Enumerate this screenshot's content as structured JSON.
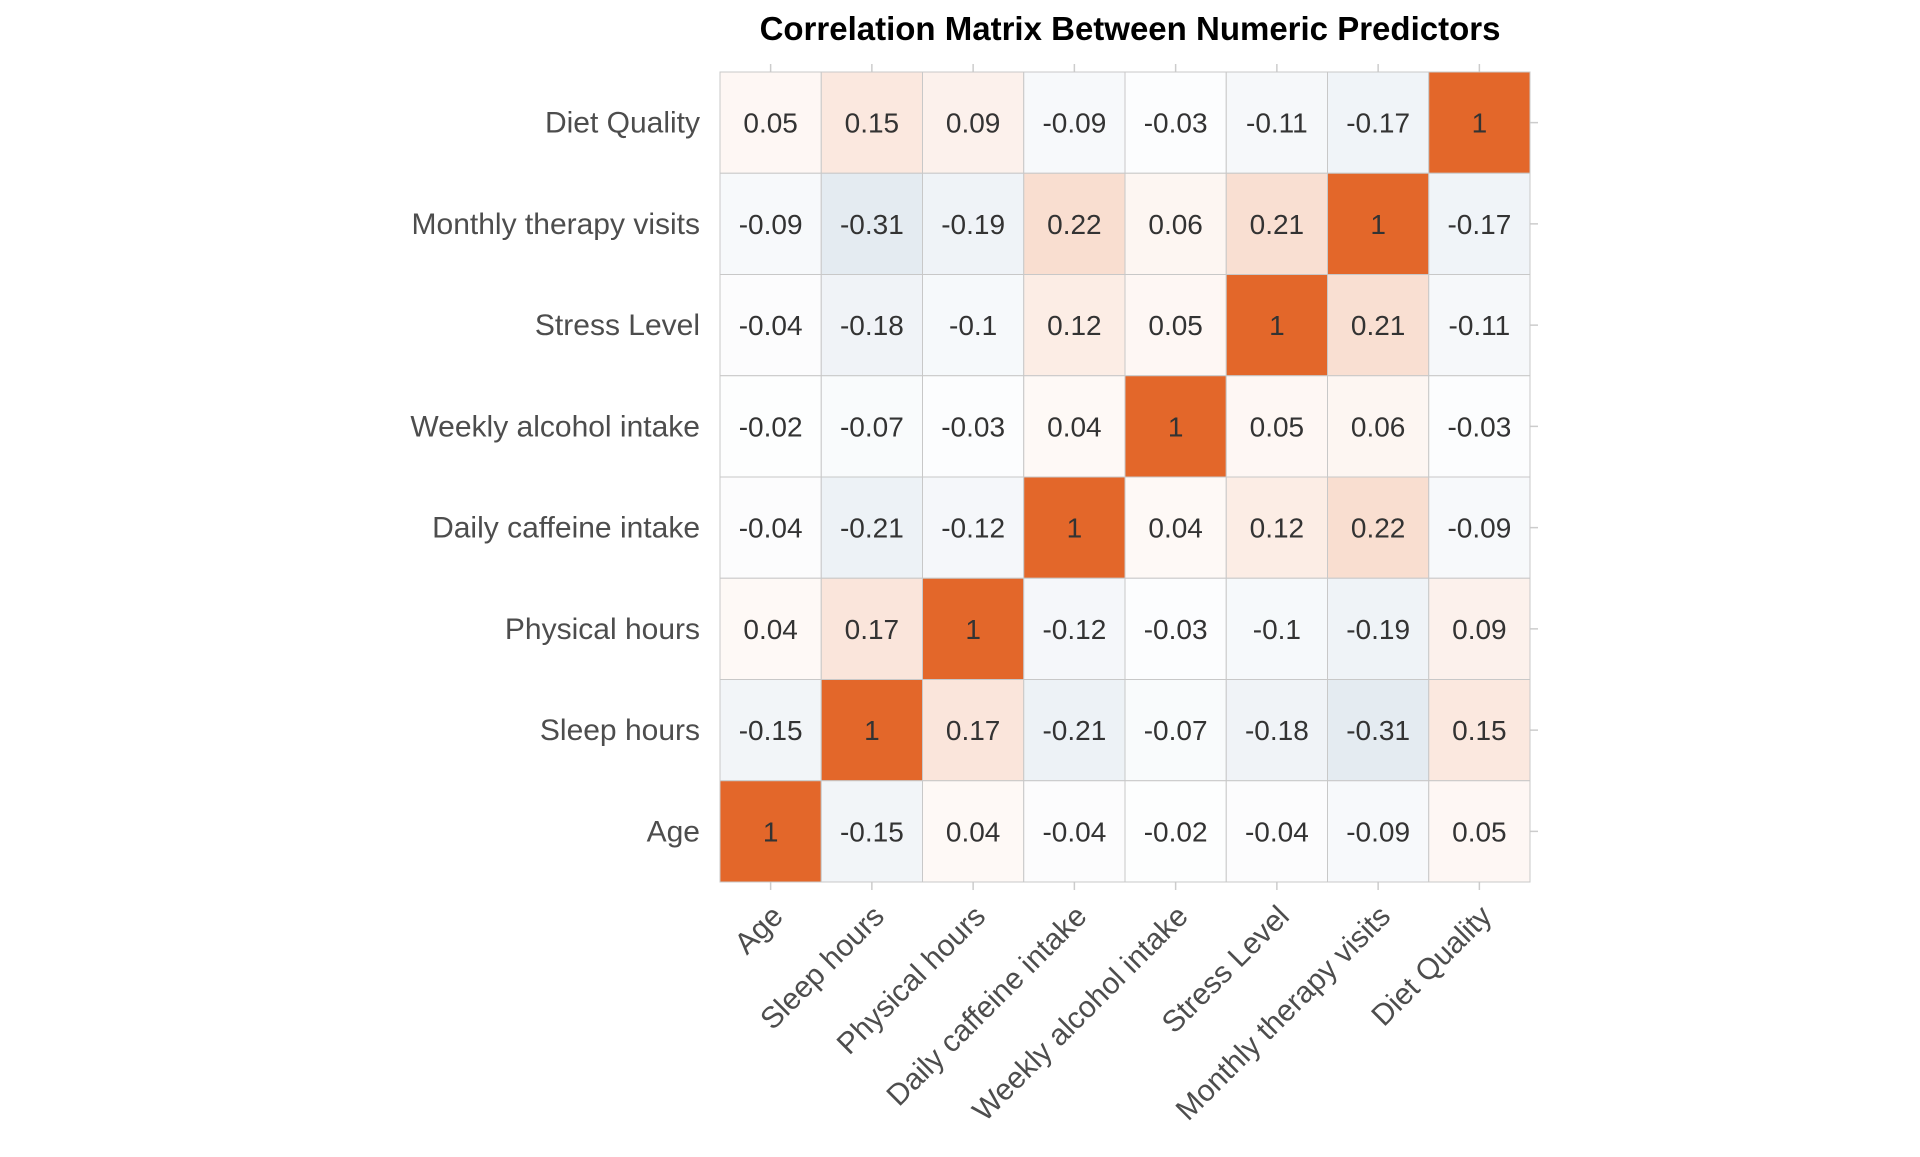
{
  "colors": {
    "positive": "#e3672a",
    "negative": "#a9bfd3",
    "neutral": "#ffffff",
    "cell_border": "#c8c8c8",
    "tick_mark": "#cccccc"
  },
  "chart_data": {
    "type": "heatmap",
    "title": "Correlation Matrix Between Numeric Predictors",
    "x_labels": [
      "Age",
      "Sleep hours",
      "Physical hours",
      "Daily caffeine intake",
      "Weekly alcohol intake",
      "Stress Level",
      "Monthly therapy visits",
      "Diet Quality"
    ],
    "y_labels": [
      "Diet Quality",
      "Monthly therapy visits",
      "Stress Level",
      "Weekly alcohol intake",
      "Daily caffeine intake",
      "Physical hours",
      "Sleep hours",
      "Age"
    ],
    "values": [
      [
        0.05,
        0.15,
        0.09,
        -0.09,
        -0.03,
        -0.11,
        -0.17,
        1
      ],
      [
        -0.09,
        -0.31,
        -0.19,
        0.22,
        0.06,
        0.21,
        1,
        -0.17
      ],
      [
        -0.04,
        -0.18,
        -0.1,
        0.12,
        0.05,
        1,
        0.21,
        -0.11
      ],
      [
        -0.02,
        -0.07,
        -0.03,
        0.04,
        1,
        0.05,
        0.06,
        -0.03
      ],
      [
        -0.04,
        -0.21,
        -0.12,
        1,
        0.04,
        0.12,
        0.22,
        -0.09
      ],
      [
        0.04,
        0.17,
        1,
        -0.12,
        -0.03,
        -0.1,
        -0.19,
        0.09
      ],
      [
        -0.15,
        1,
        0.17,
        -0.21,
        -0.07,
        -0.18,
        -0.31,
        0.15
      ],
      [
        1,
        -0.15,
        0.04,
        -0.04,
        -0.02,
        -0.04,
        -0.09,
        0.05
      ]
    ],
    "value_range": [
      -1,
      1
    ],
    "grid": false,
    "legend": "none"
  }
}
